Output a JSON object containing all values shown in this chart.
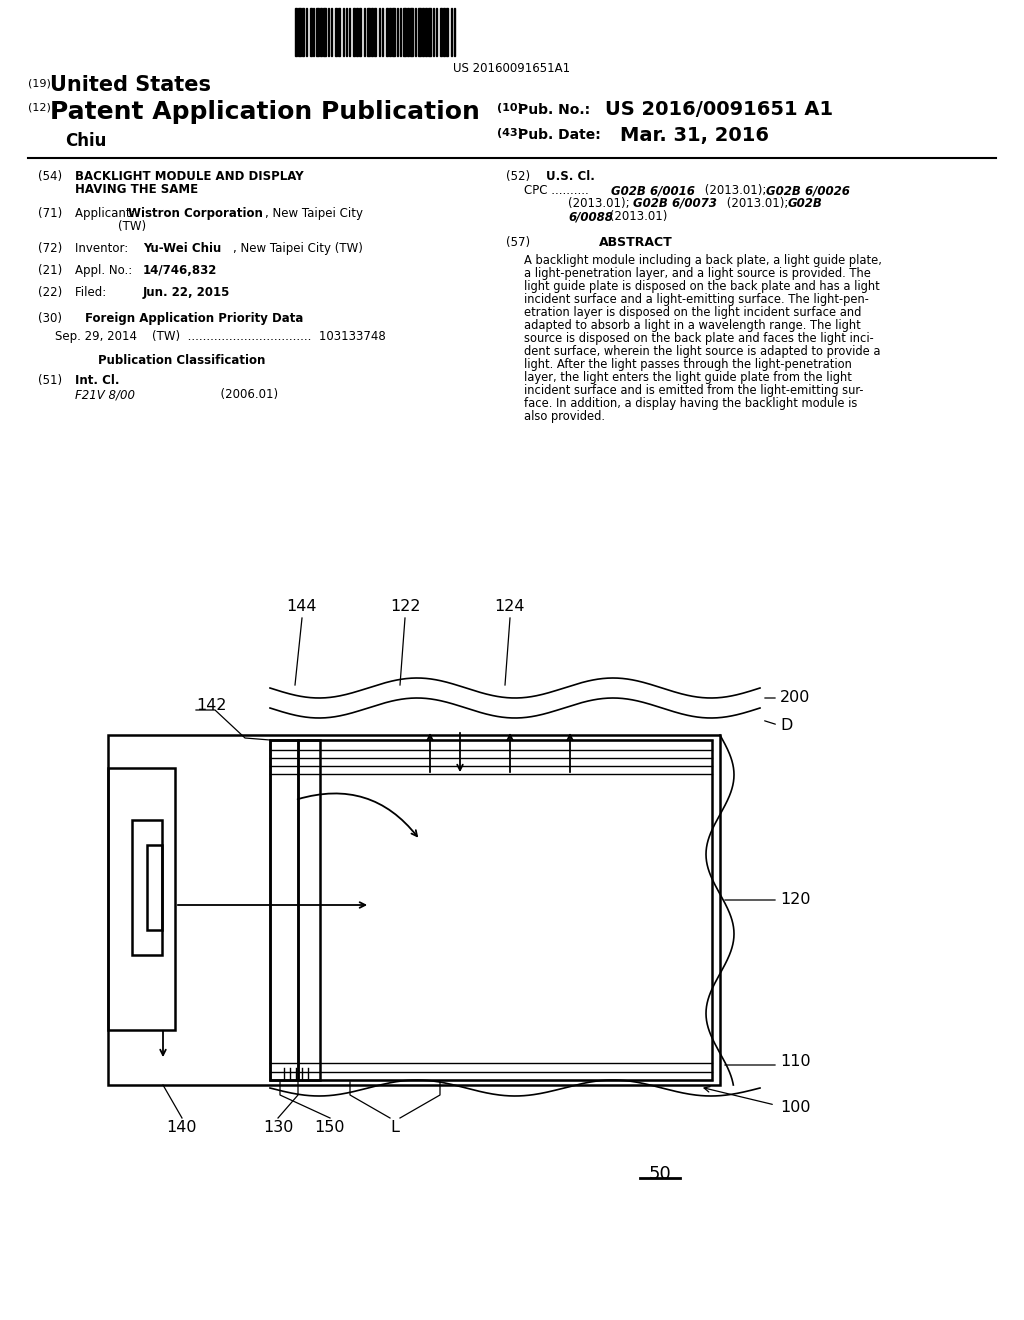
{
  "bg_color": "#ffffff",
  "barcode_text": "US 20160091651A1",
  "header": {
    "country_num": "(19)",
    "country": "United States",
    "type_num": "(12)",
    "type_label": "Patent Application Publication",
    "inventor_last": "Chiu",
    "pub_no_num": "(10)",
    "pub_no_label": "Pub. No.:",
    "pub_no": "US 2016/0091651 A1",
    "pub_date_num": "(43)",
    "pub_date_label": "Pub. Date:",
    "pub_date": "Mar. 31, 2016"
  },
  "left_col": {
    "title_num": "(54)",
    "title_line1": "BACKLIGHT MODULE AND DISPLAY",
    "title_line2": "HAVING THE SAME",
    "applicant_num": "(71)",
    "inventor_num": "(72)",
    "appl_num": "(21)",
    "filed_num": "(22)",
    "foreign_num": "(30)",
    "intcl_num": "(51)",
    "intcl_code": "F21V 8/00",
    "intcl_year": "(2006.01)"
  },
  "right_col": {
    "uscl_num": "(52)",
    "abstract_num": "(57)",
    "abstract_title": "ABSTRACT",
    "abstract_text": "A backlight module including a back plate, a light guide plate, a light-penetration layer, and a light source is provided. The light guide plate is disposed on the back plate and has a light incident surface and a light-emitting surface. The light-pen-etration layer is disposed on the light incident surface and adapted to absorb a light in a wavelength range. The light source is disposed on the back plate and faces the light inci-dent surface, wherein the light source is adapted to provide a light. After the light passes through the light-penetration layer, the light enters the light guide plate from the light incident surface and is emitted from the light-emitting sur-face. In addition, a display having the backlight module is also provided."
  },
  "diagram": {
    "fig_num": "50"
  }
}
